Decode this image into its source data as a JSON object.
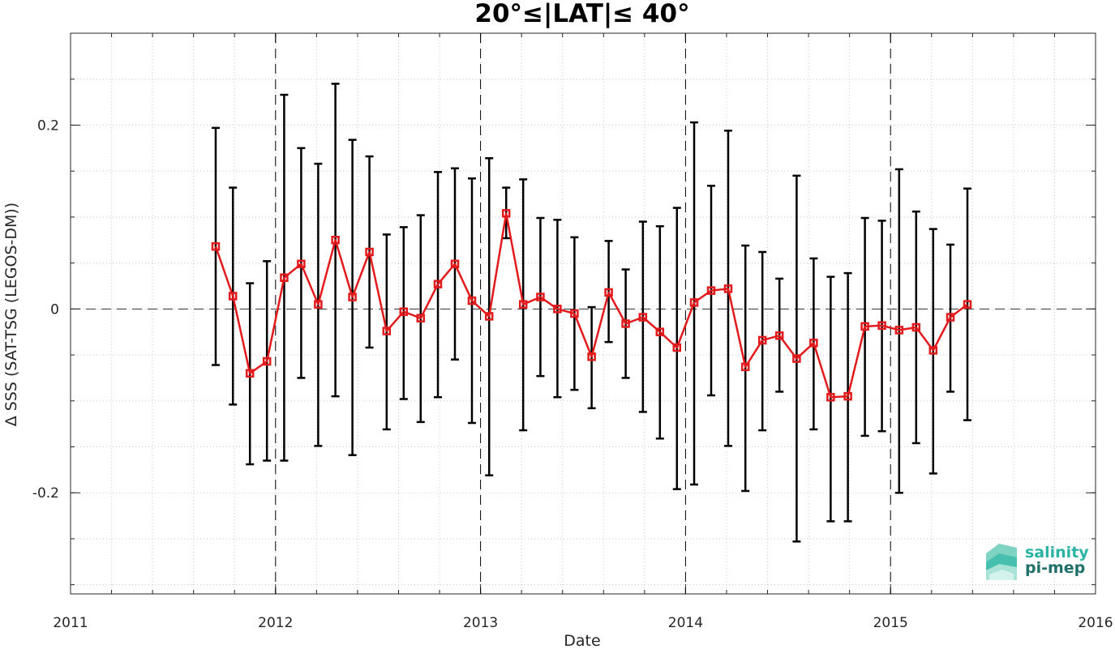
{
  "chart_data": {
    "type": "line",
    "title": "20°≤|LAT|≤ 40°",
    "xlabel": "Date",
    "ylabel": "Δ SSS (SAT-TSG (LEGOS-DM))",
    "xlim": [
      2011,
      2016
    ],
    "ylim": [
      -0.31,
      0.3
    ],
    "xticks": [
      2011,
      2012,
      2013,
      2014,
      2015,
      2016
    ],
    "xtick_labels": [
      "2011",
      "2012",
      "2013",
      "2014",
      "2015",
      "2016"
    ],
    "yticks": [
      -0.2,
      0,
      0.2
    ],
    "ytick_labels": [
      "-0.2",
      "0",
      "0.2"
    ],
    "grid": true,
    "year_separators": [
      2012,
      2013,
      2014,
      2015
    ],
    "zero_line": true,
    "colors": {
      "line": "#e31a1c",
      "marker": "#e31a1c",
      "errorbar": "#000000",
      "grid": "#c8c8c8"
    },
    "series": [
      {
        "x": [
          2011.708,
          2011.792,
          2011.875,
          2011.958,
          2012.042,
          2012.125,
          2012.208,
          2012.292,
          2012.375,
          2012.458,
          2012.542,
          2012.625,
          2012.708,
          2012.792,
          2012.875,
          2012.958,
          2013.042,
          2013.125,
          2013.208,
          2013.292,
          2013.375,
          2013.458,
          2013.542,
          2013.625,
          2013.708,
          2013.792,
          2013.875,
          2013.958,
          2014.042,
          2014.125,
          2014.208,
          2014.292,
          2014.375,
          2014.458,
          2014.542,
          2014.625,
          2014.708,
          2014.792,
          2014.875,
          2014.958,
          2015.042,
          2015.125,
          2015.208,
          2015.292,
          2015.375
        ],
        "y": [
          0.068,
          0.014,
          -0.07,
          -0.057,
          0.034,
          0.049,
          0.005,
          0.075,
          0.013,
          0.062,
          -0.024,
          -0.003,
          -0.01,
          0.027,
          0.049,
          0.009,
          -0.008,
          0.104,
          0.005,
          0.013,
          0.0,
          -0.005,
          -0.052,
          0.018,
          -0.016,
          -0.009,
          -0.025,
          -0.042,
          0.007,
          0.02,
          0.022,
          -0.063,
          -0.034,
          -0.029,
          -0.054,
          -0.037,
          -0.096,
          -0.095,
          -0.019,
          -0.018,
          -0.023,
          -0.02,
          -0.045,
          -0.009,
          0.005
        ],
        "err_low": [
          -0.061,
          -0.104,
          -0.169,
          -0.165,
          -0.165,
          -0.075,
          -0.149,
          -0.095,
          -0.159,
          -0.042,
          -0.131,
          -0.098,
          -0.123,
          -0.096,
          -0.055,
          -0.124,
          -0.181,
          0.077,
          -0.132,
          -0.073,
          -0.096,
          -0.088,
          -0.108,
          -0.036,
          -0.075,
          -0.112,
          -0.141,
          -0.196,
          -0.191,
          -0.094,
          -0.149,
          -0.198,
          -0.132,
          -0.09,
          -0.253,
          -0.131,
          -0.231,
          -0.231,
          -0.138,
          -0.133,
          -0.2,
          -0.146,
          -0.179,
          -0.09,
          -0.121
        ],
        "err_high": [
          0.197,
          0.132,
          0.028,
          0.052,
          0.233,
          0.175,
          0.158,
          0.245,
          0.184,
          0.166,
          0.081,
          0.089,
          0.102,
          0.149,
          0.153,
          0.142,
          0.164,
          0.132,
          0.141,
          0.099,
          0.097,
          0.078,
          0.002,
          0.074,
          0.043,
          0.095,
          0.09,
          0.11,
          0.203,
          0.134,
          0.194,
          0.069,
          0.062,
          0.033,
          0.145,
          0.055,
          0.035,
          0.039,
          0.099,
          0.096,
          0.152,
          0.106,
          0.087,
          0.07,
          0.131
        ]
      }
    ]
  },
  "logo": {
    "line1": "salinity",
    "line2": "pi-mep",
    "color1": "#2bb3a3",
    "color2": "#1f6f6a"
  }
}
